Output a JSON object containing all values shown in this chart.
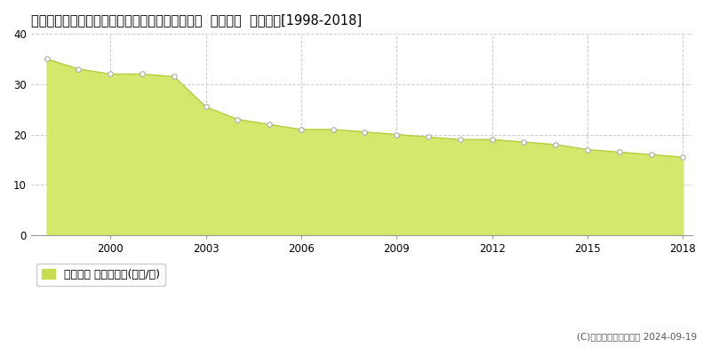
{
  "title": "愛知県知多郡武豊町大字東大高字北浜田１６番外  公示地価  地価推移[1998-2018]",
  "years": [
    1998,
    1999,
    2000,
    2001,
    2002,
    2003,
    2004,
    2005,
    2006,
    2007,
    2008,
    2009,
    2010,
    2011,
    2012,
    2013,
    2014,
    2015,
    2016,
    2017,
    2018
  ],
  "values": [
    35.0,
    33.0,
    32.0,
    32.0,
    31.5,
    25.5,
    23.0,
    22.0,
    21.0,
    21.0,
    20.5,
    20.0,
    19.5,
    19.0,
    19.0,
    18.5,
    18.0,
    17.0,
    16.5,
    16.0,
    15.5
  ],
  "fill_color": "#d4e96b",
  "line_color": "#b8cc40",
  "marker_facecolor": "#ffffff",
  "marker_edgecolor": "#aaaaaa",
  "grid_color": "#cccccc",
  "bg_color": "#ffffff",
  "ylim": [
    0,
    40
  ],
  "yticks": [
    0,
    10,
    20,
    30,
    40
  ],
  "xticks": [
    2000,
    2003,
    2006,
    2009,
    2012,
    2015,
    2018
  ],
  "legend_label": "公示地価 平均坪単価(万円/坪)",
  "legend_color": "#c8dc50",
  "copyright_text": "(C)土地価格ドットコム 2024-09-19",
  "title_fontsize": 10.5,
  "tick_fontsize": 8.5,
  "legend_fontsize": 9
}
